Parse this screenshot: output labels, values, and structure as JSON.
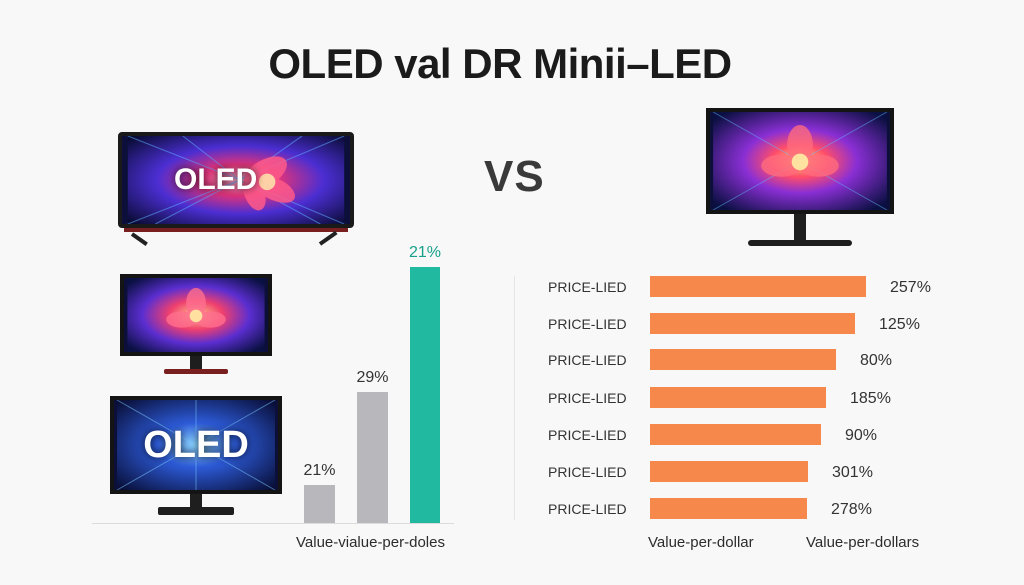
{
  "title": "OLED val DR Minii–LED",
  "vs_label": "VS",
  "screen_labels": {
    "top_left": "OLED",
    "bottom_left": "OLED"
  },
  "colors": {
    "bar_gray": "#b8b7bc",
    "bar_teal": "#21b9a0",
    "bar_orange": "#f5884a",
    "teal_label": "#16a08a",
    "screen_bg": "#0b0f3a"
  },
  "chart_data": [
    {
      "type": "bar",
      "orientation": "vertical",
      "title": "",
      "xlabel": "Value-vialue-per-doles",
      "ylabel": "",
      "categories": [
        "",
        "",
        ""
      ],
      "values": [
        21,
        29,
        21
      ],
      "value_labels": [
        "21%",
        "29%",
        "21%"
      ],
      "ylim": [
        0,
        21
      ],
      "grid": false,
      "legend": "none"
    },
    {
      "type": "bar",
      "orientation": "horizontal",
      "title": "",
      "xlabels": [
        "Value-per-dollar",
        "Value-per-dollars"
      ],
      "ylabel": "",
      "categories": [
        "PRICE-LIED",
        "PRICE-LIED",
        "PRICE-LIED",
        "PRICE-LIED",
        "PRICE-LIED",
        "PRICE-LIED",
        "PRICE-LIED"
      ],
      "values": [
        257,
        125,
        80,
        185,
        90,
        301,
        278
      ],
      "value_labels": [
        "257%",
        "125%",
        "80%",
        "185%",
        "90%",
        "301%",
        "278%"
      ],
      "grid": false,
      "legend": "none"
    }
  ]
}
